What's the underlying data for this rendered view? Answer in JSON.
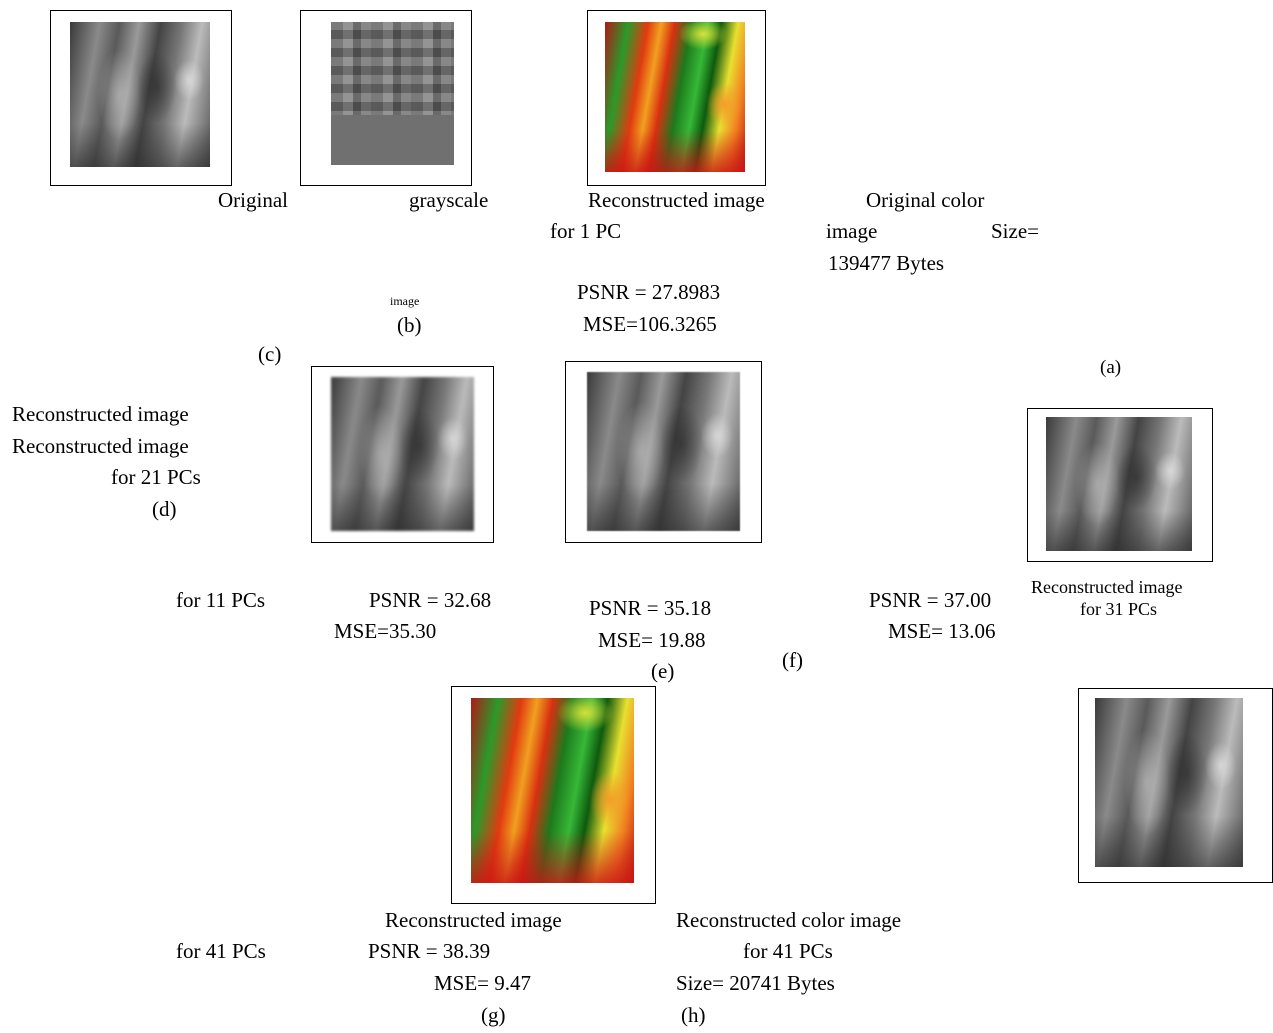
{
  "figure": {
    "texts": [
      "Original",
      "grayscale",
      "Reconstructed image",
      "Original color",
      "for 1 PC",
      "image",
      "Size=",
      "139477 Bytes",
      "image",
      "(b)",
      "PSNR = 27.8983",
      "MSE=106.3265",
      "(c)",
      "(a)",
      "Reconstructed image",
      "Reconstructed image",
      "for 21 PCs",
      "(d)",
      "Reconstructed image",
      "for 31 PCs",
      "for 11 PCs",
      "PSNR = 32.68",
      "MSE=35.30",
      "PSNR = 35.18",
      "MSE= 19.88",
      "(e)",
      "(f)",
      "PSNR = 37.00",
      "MSE= 13.06",
      "Reconstructed image",
      "Reconstructed color image",
      "for 41 PCs",
      "PSNR = 38.39",
      "for 41 PCs",
      "MSE= 9.47",
      "Size= 20741 Bytes",
      "(g)",
      "(h)"
    ]
  }
}
